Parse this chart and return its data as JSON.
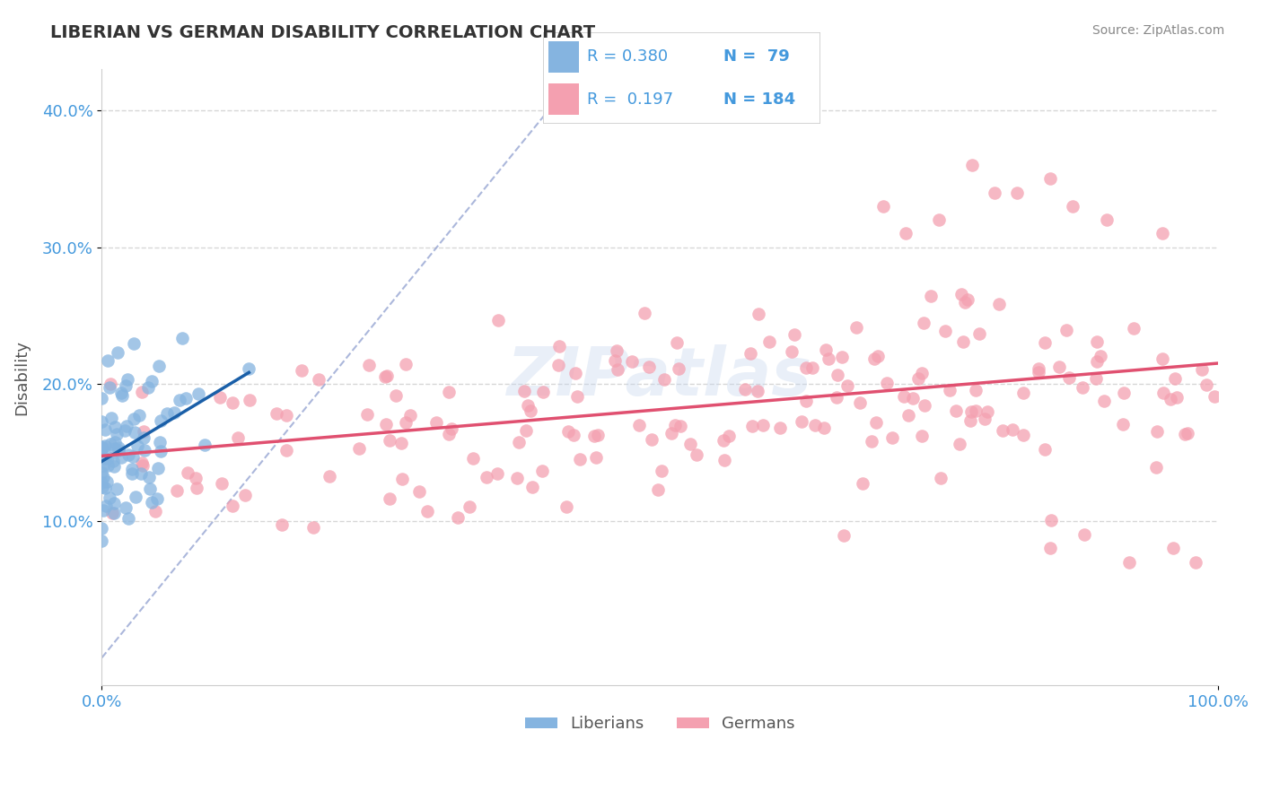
{
  "title": "LIBERIAN VS GERMAN DISABILITY CORRELATION CHART",
  "source": "Source: ZipAtlas.com",
  "ylabel": "Disability",
  "xlim": [
    0.0,
    1.0
  ],
  "ylim": [
    -0.02,
    0.43
  ],
  "yticks": [
    0.1,
    0.2,
    0.3,
    0.4
  ],
  "ytick_labels": [
    "10.0%",
    "20.0%",
    "30.0%",
    "40.0%"
  ],
  "liberian_R": 0.38,
  "liberian_N": 79,
  "german_R": 0.197,
  "german_N": 184,
  "liberian_color": "#85b4e0",
  "german_color": "#f4a0b0",
  "liberian_line_color": "#1a5fa8",
  "german_line_color": "#e05070",
  "ref_line_color": "#8899cc",
  "background_color": "#ffffff",
  "grid_color": "#cccccc",
  "title_color": "#333333",
  "axis_label_color": "#555555",
  "tick_color": "#4499dd",
  "legend_text_color": "#4499dd",
  "watermark": "ZIPatlas"
}
